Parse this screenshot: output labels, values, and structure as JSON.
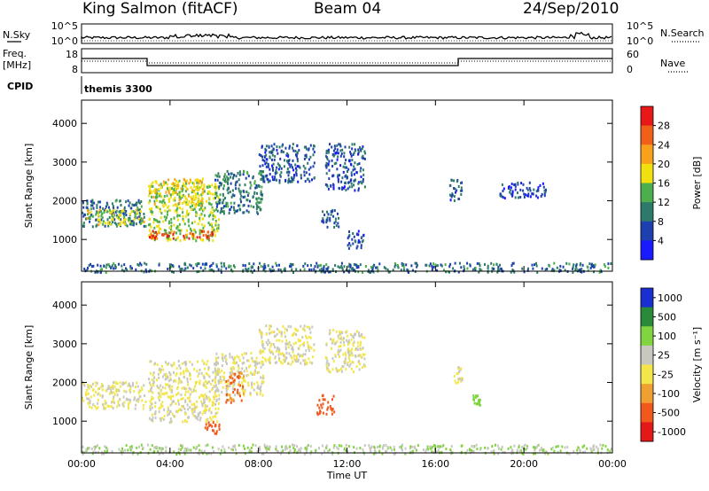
{
  "header": {
    "station": "King Salmon (fitACF)",
    "beam": "Beam 04",
    "date": "24/Sep/2010"
  },
  "status_panels": {
    "nsky_label": "N.Sky",
    "nsearch_label": "N.Search",
    "noise_ticks": [
      "10^5",
      "10^0"
    ],
    "freq_label_1": "Freq.",
    "freq_label_2": "[MHz]",
    "freq_ticks": [
      "18",
      "8"
    ],
    "nave_ticks": [
      "60",
      "0"
    ],
    "nave_label": "Nave",
    "cpid_label": "CPID",
    "cpid_value": "themis 3300"
  },
  "colors": {
    "power": [
      "#1a1aff",
      "#1e3fb0",
      "#2e7a6a",
      "#4cae4c",
      "#f0e010",
      "#f7a21a",
      "#f06018",
      "#e81818"
    ],
    "velocity": [
      "#1a2fd0",
      "#2a8a3a",
      "#7fd43f",
      "#c8c8c0",
      "#f2e64a",
      "#f0a030",
      "#f0581c",
      "#e41818"
    ]
  },
  "chart_data": [
    {
      "type": "heatmap",
      "title": "Power",
      "xlabel": "",
      "ylabel": "Slant Range [km]",
      "xlim": [
        "00:00",
        "24:00"
      ],
      "ylim": [
        180,
        4600
      ],
      "yticks": [
        "1000",
        "2000",
        "3000",
        "4000"
      ],
      "colorbar": {
        "label": "Power [dB]",
        "ticks": [
          "4",
          "8",
          "12",
          "16",
          "20",
          "24",
          "28"
        ],
        "range": [
          0,
          32
        ]
      },
      "regions": [
        {
          "t": [
            0.0,
            2.9
          ],
          "r": [
            1350,
            2050
          ],
          "value": 9
        },
        {
          "t": [
            0.2,
            2.8
          ],
          "r": [
            1400,
            1800
          ],
          "value": 17
        },
        {
          "t": [
            3.0,
            6.2
          ],
          "r": [
            1000,
            2500
          ],
          "value": 16
        },
        {
          "t": [
            3.0,
            6.0
          ],
          "r": [
            1050,
            1250
          ],
          "value": 27
        },
        {
          "t": [
            3.0,
            5.5
          ],
          "r": [
            1900,
            2600
          ],
          "value": 18
        },
        {
          "t": [
            6.0,
            8.2
          ],
          "r": [
            1700,
            2800
          ],
          "value": 10
        },
        {
          "t": [
            8.0,
            10.5
          ],
          "r": [
            2500,
            3500
          ],
          "value": 7
        },
        {
          "t": [
            11.0,
            12.8
          ],
          "r": [
            2300,
            3500
          ],
          "value": 7
        },
        {
          "t": [
            10.8,
            11.6
          ],
          "r": [
            1300,
            1800
          ],
          "value": 8
        },
        {
          "t": [
            12.0,
            12.8
          ],
          "r": [
            800,
            1300
          ],
          "value": 6
        },
        {
          "t": [
            16.6,
            17.2
          ],
          "r": [
            2000,
            2600
          ],
          "value": 7
        },
        {
          "t": [
            18.8,
            21.0
          ],
          "r": [
            2100,
            2500
          ],
          "value": 6
        },
        {
          "t": [
            0.0,
            24.0
          ],
          "r": [
            180,
            420
          ],
          "value": 9
        }
      ]
    },
    {
      "type": "heatmap",
      "title": "Velocity",
      "xlabel": "Time UT",
      "ylabel": "Slant Range [km]",
      "xlim": [
        "00:00",
        "24:00"
      ],
      "ylim": [
        180,
        4600
      ],
      "xticks": [
        "00:00",
        "04:00",
        "08:00",
        "12:00",
        "16:00",
        "20:00",
        "00:00"
      ],
      "yticks": [
        "1000",
        "2000",
        "3000",
        "4000"
      ],
      "colorbar": {
        "label": "Velocity [m s^-1]",
        "ticks": [
          "1000",
          "500",
          "100",
          "25",
          "-25",
          "-100",
          "-500",
          "-1000"
        ]
      },
      "regions": [
        {
          "t": [
            0.0,
            2.9
          ],
          "r": [
            1350,
            2050
          ],
          "value": 0
        },
        {
          "t": [
            3.0,
            6.2
          ],
          "r": [
            1000,
            2600
          ],
          "value": 0
        },
        {
          "t": [
            6.0,
            8.2
          ],
          "r": [
            1700,
            2800
          ],
          "value": 0
        },
        {
          "t": [
            6.5,
            7.3
          ],
          "r": [
            1500,
            2300
          ],
          "value": -300
        },
        {
          "t": [
            5.5,
            6.2
          ],
          "r": [
            700,
            1000
          ],
          "value": -400
        },
        {
          "t": [
            8.0,
            10.5
          ],
          "r": [
            2500,
            3500
          ],
          "value": 0
        },
        {
          "t": [
            10.6,
            11.4
          ],
          "r": [
            1200,
            1700
          ],
          "value": -500
        },
        {
          "t": [
            11.0,
            12.8
          ],
          "r": [
            2300,
            3400
          ],
          "value": 0
        },
        {
          "t": [
            16.8,
            17.2
          ],
          "r": [
            2000,
            2500
          ],
          "value": 0
        },
        {
          "t": [
            17.6,
            18.0
          ],
          "r": [
            1400,
            1700
          ],
          "value": 200
        },
        {
          "t": [
            0.0,
            24.0
          ],
          "r": [
            180,
            420
          ],
          "value": 60
        }
      ]
    }
  ]
}
